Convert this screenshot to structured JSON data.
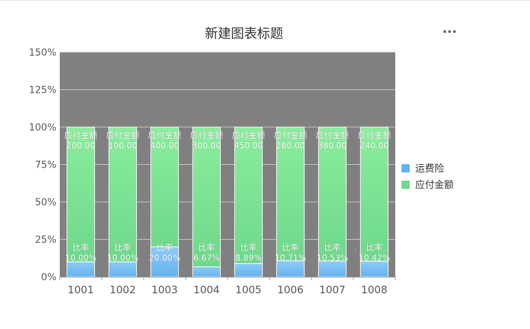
{
  "chart_data": {
    "type": "bar",
    "stacked": true,
    "title": "新建图表标题",
    "categories": [
      "1001",
      "1002",
      "1003",
      "1004",
      "1005",
      "1006",
      "1007",
      "1008"
    ],
    "y_ticks": [
      "0%",
      "25%",
      "50%",
      "75%",
      "100%",
      "125%",
      "150%"
    ],
    "ylim": [
      0,
      150
    ],
    "grid": true,
    "legend_position": "right",
    "series": [
      {
        "name": "运费险",
        "label_prefix": "比率",
        "values": [
          10.0,
          10.0,
          20.0,
          6.67,
          8.89,
          10.71,
          10.53,
          10.42
        ],
        "labels": [
          "10.00%",
          "10.00%",
          "20.00%",
          "6.67%",
          "8.89%",
          "10.71%",
          "10.53%",
          "10.42%"
        ],
        "color_top": "#8ecbf8",
        "color_bottom": "#62b3ef"
      },
      {
        "name": "应付金额",
        "label_prefix": "应付金额",
        "values": [
          90.0,
          90.0,
          80.0,
          93.33,
          91.11,
          89.29,
          89.47,
          89.58
        ],
        "labels": [
          "200.00",
          "100.00",
          "400.00",
          "300.00",
          "450.00",
          "280.00",
          "380.00",
          "240.00"
        ],
        "color_top": "#8aee9c",
        "color_bottom": "#6fd88c"
      }
    ],
    "plot_background": "#808080"
  },
  "toolbar": {
    "more_icon": "more-horizontal-icon"
  }
}
